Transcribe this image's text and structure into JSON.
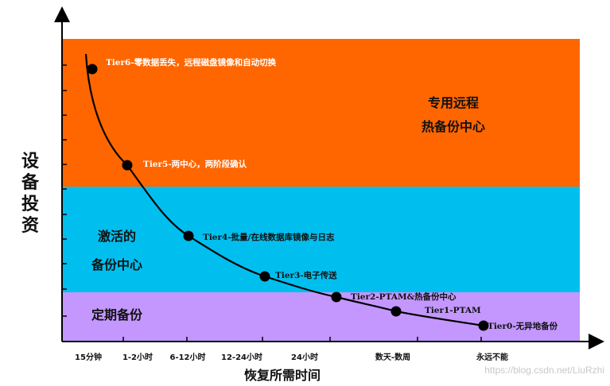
{
  "bands": [
    {
      "key": "hot",
      "lines": [
        "专用远程",
        "热备份中心"
      ],
      "color": "#ff6600"
    },
    {
      "key": "active",
      "lines": [
        "激活的",
        "备份中心"
      ],
      "color": "#00bfef"
    },
    {
      "key": "periodic",
      "lines": [
        "定期备份"
      ],
      "color": "#c497ff"
    }
  ],
  "tiers": [
    {
      "label": "Tier6-零数据丢失，远程磁盘镜像和自动切换",
      "color": "#ffffff"
    },
    {
      "label": "Tier5-两中心，两阶段确认",
      "color": "#ffffff"
    },
    {
      "label": "Tier4-批量/在线数据库镜像与日志",
      "color": "#111111"
    },
    {
      "label": "Tier3-电子传送",
      "color": "#111111"
    },
    {
      "label": "Tier2-PTAM&热备份中心",
      "color": "#111111"
    },
    {
      "label": "Tier1-PTAM",
      "color": "#111111"
    },
    {
      "label": "Tier0-无异地备份",
      "color": "#111111"
    }
  ],
  "x_ticks": [
    "15分钟",
    "1-2小时",
    "6-12小时",
    "12-24小时",
    "24小时",
    "数天-数周",
    "永远不能"
  ],
  "x_axis_title": "恢复所需时间",
  "y_axis_title": "设备投资",
  "watermark": "https://blog.csdn.net/LiuRzhi"
}
